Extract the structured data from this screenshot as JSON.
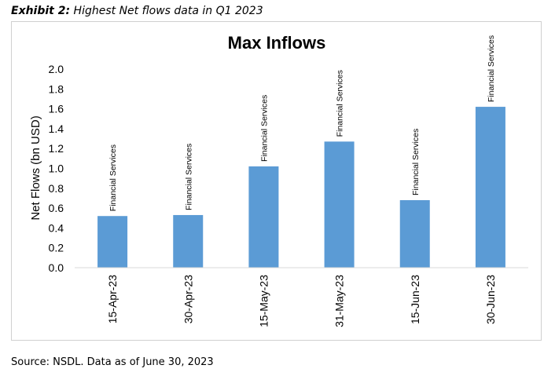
{
  "exhibit": {
    "label": "Exhibit 2:",
    "title": "Highest Net flows data in Q1 2023"
  },
  "source": "Source: NSDL. Data as of June 30, 2023",
  "colors": {
    "bar": "#5b9bd5",
    "axis": "#d9d9d9",
    "text": "#000000"
  },
  "chart_data": {
    "type": "bar",
    "title": "Max Inflows",
    "xlabel": "",
    "ylabel": "Net Flows (bn USD)",
    "categories": [
      "15-Apr-23",
      "30-Apr-23",
      "15-May-23",
      "31-May-23",
      "15-Jun-23",
      "30-Jun-23"
    ],
    "values": [
      0.52,
      0.53,
      1.02,
      1.27,
      0.68,
      1.62
    ],
    "data_labels": [
      "Financial Services",
      "Financial Services",
      "Financial Services",
      "Financial Services",
      "Financial Services",
      "Financial Services"
    ],
    "ylim": [
      0,
      2.0
    ],
    "yticks": [
      "0.0",
      "0.2",
      "0.4",
      "0.6",
      "0.8",
      "1.0",
      "1.2",
      "1.4",
      "1.6",
      "1.8",
      "2.0"
    ],
    "grid": false,
    "legend": "none"
  }
}
